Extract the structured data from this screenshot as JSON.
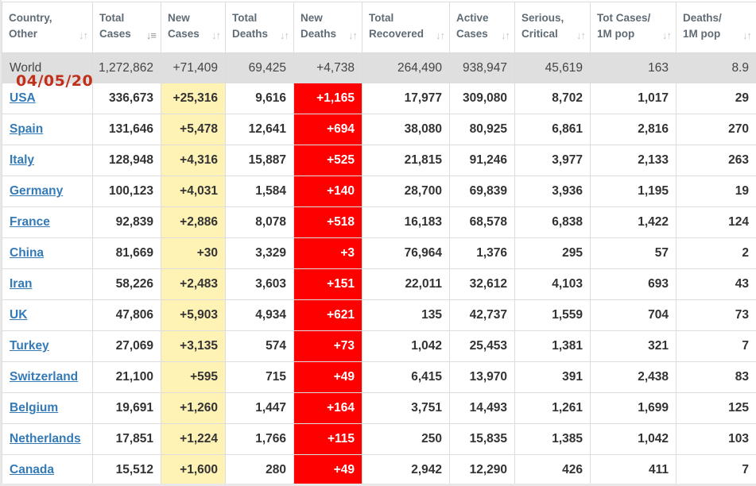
{
  "stamp": "04/05/20",
  "headers": [
    {
      "line1": "Country,",
      "line2": "Other",
      "sort_icon": "sort-updown-icon"
    },
    {
      "line1": "Total",
      "line2": "Cases",
      "sort_icon": "sort-desc-active-icon"
    },
    {
      "line1": "New",
      "line2": "Cases",
      "sort_icon": "sort-updown-icon"
    },
    {
      "line1": "Total",
      "line2": "Deaths",
      "sort_icon": "sort-updown-icon"
    },
    {
      "line1": "New",
      "line2": "Deaths",
      "sort_icon": "sort-updown-icon"
    },
    {
      "line1": "Total",
      "line2": "Recovered",
      "sort_icon": "sort-updown-icon"
    },
    {
      "line1": "Active",
      "line2": "Cases",
      "sort_icon": "sort-updown-icon"
    },
    {
      "line1": "Serious,",
      "line2": "Critical",
      "sort_icon": "sort-updown-icon"
    },
    {
      "line1": "Tot Cases/",
      "line2": "1M pop",
      "sort_icon": "sort-updown-icon"
    },
    {
      "line1": "Deaths/",
      "line2": "1M pop",
      "sort_icon": "sort-updown-icon"
    }
  ],
  "colors": {
    "new_cases_highlight": "#fff2b5",
    "new_deaths_highlight": "#ff0000",
    "world_row": "#dfdfdf",
    "link": "#337ab7",
    "stamp": "#c0301a"
  },
  "world": {
    "country": "World",
    "total_cases": "1,272,862",
    "new_cases": "+71,409",
    "total_deaths": "69,425",
    "new_deaths": "+4,738",
    "total_recovered": "264,490",
    "active_cases": "938,947",
    "serious_critical": "45,619",
    "tot_cases_per_1m": "163",
    "deaths_per_1m": "8.9"
  },
  "rows": [
    {
      "country": "USA",
      "total_cases": "336,673",
      "new_cases": "+25,316",
      "total_deaths": "9,616",
      "new_deaths": "+1,165",
      "total_recovered": "17,977",
      "active_cases": "309,080",
      "serious_critical": "8,702",
      "tot_cases_per_1m": "1,017",
      "deaths_per_1m": "29"
    },
    {
      "country": "Spain",
      "total_cases": "131,646",
      "new_cases": "+5,478",
      "total_deaths": "12,641",
      "new_deaths": "+694",
      "total_recovered": "38,080",
      "active_cases": "80,925",
      "serious_critical": "6,861",
      "tot_cases_per_1m": "2,816",
      "deaths_per_1m": "270"
    },
    {
      "country": "Italy",
      "total_cases": "128,948",
      "new_cases": "+4,316",
      "total_deaths": "15,887",
      "new_deaths": "+525",
      "total_recovered": "21,815",
      "active_cases": "91,246",
      "serious_critical": "3,977",
      "tot_cases_per_1m": "2,133",
      "deaths_per_1m": "263"
    },
    {
      "country": "Germany",
      "total_cases": "100,123",
      "new_cases": "+4,031",
      "total_deaths": "1,584",
      "new_deaths": "+140",
      "total_recovered": "28,700",
      "active_cases": "69,839",
      "serious_critical": "3,936",
      "tot_cases_per_1m": "1,195",
      "deaths_per_1m": "19"
    },
    {
      "country": "France",
      "total_cases": "92,839",
      "new_cases": "+2,886",
      "total_deaths": "8,078",
      "new_deaths": "+518",
      "total_recovered": "16,183",
      "active_cases": "68,578",
      "serious_critical": "6,838",
      "tot_cases_per_1m": "1,422",
      "deaths_per_1m": "124"
    },
    {
      "country": "China",
      "total_cases": "81,669",
      "new_cases": "+30",
      "total_deaths": "3,329",
      "new_deaths": "+3",
      "total_recovered": "76,964",
      "active_cases": "1,376",
      "serious_critical": "295",
      "tot_cases_per_1m": "57",
      "deaths_per_1m": "2"
    },
    {
      "country": "Iran",
      "total_cases": "58,226",
      "new_cases": "+2,483",
      "total_deaths": "3,603",
      "new_deaths": "+151",
      "total_recovered": "22,011",
      "active_cases": "32,612",
      "serious_critical": "4,103",
      "tot_cases_per_1m": "693",
      "deaths_per_1m": "43"
    },
    {
      "country": "UK",
      "total_cases": "47,806",
      "new_cases": "+5,903",
      "total_deaths": "4,934",
      "new_deaths": "+621",
      "total_recovered": "135",
      "active_cases": "42,737",
      "serious_critical": "1,559",
      "tot_cases_per_1m": "704",
      "deaths_per_1m": "73"
    },
    {
      "country": "Turkey",
      "total_cases": "27,069",
      "new_cases": "+3,135",
      "total_deaths": "574",
      "new_deaths": "+73",
      "total_recovered": "1,042",
      "active_cases": "25,453",
      "serious_critical": "1,381",
      "tot_cases_per_1m": "321",
      "deaths_per_1m": "7"
    },
    {
      "country": "Switzerland",
      "total_cases": "21,100",
      "new_cases": "+595",
      "total_deaths": "715",
      "new_deaths": "+49",
      "total_recovered": "6,415",
      "active_cases": "13,970",
      "serious_critical": "391",
      "tot_cases_per_1m": "2,438",
      "deaths_per_1m": "83"
    },
    {
      "country": "Belgium",
      "total_cases": "19,691",
      "new_cases": "+1,260",
      "total_deaths": "1,447",
      "new_deaths": "+164",
      "total_recovered": "3,751",
      "active_cases": "14,493",
      "serious_critical": "1,261",
      "tot_cases_per_1m": "1,699",
      "deaths_per_1m": "125"
    },
    {
      "country": "Netherlands",
      "total_cases": "17,851",
      "new_cases": "+1,224",
      "total_deaths": "1,766",
      "new_deaths": "+115",
      "total_recovered": "250",
      "active_cases": "15,835",
      "serious_critical": "1,385",
      "tot_cases_per_1m": "1,042",
      "deaths_per_1m": "103"
    },
    {
      "country": "Canada",
      "total_cases": "15,512",
      "new_cases": "+1,600",
      "total_deaths": "280",
      "new_deaths": "+49",
      "total_recovered": "2,942",
      "active_cases": "12,290",
      "serious_critical": "426",
      "tot_cases_per_1m": "411",
      "deaths_per_1m": "7"
    }
  ]
}
